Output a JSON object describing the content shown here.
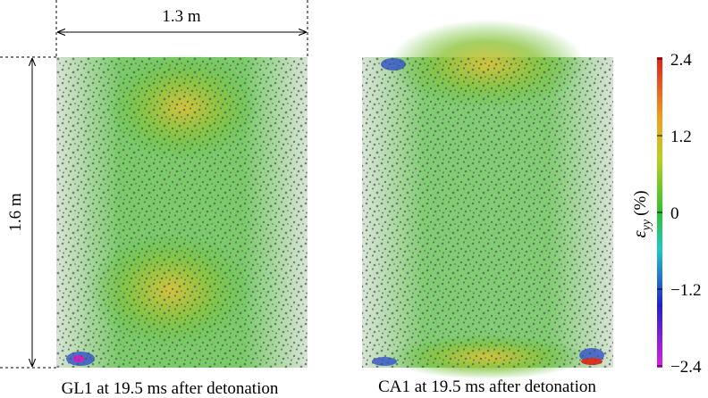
{
  "figure": {
    "dimensions": {
      "width": "1.3 m",
      "height": "1.6 m"
    },
    "panels": [
      {
        "caption": "GL1 at 19.5 ms after detonation"
      },
      {
        "caption": "CA1 at 19.5 ms after detonation"
      }
    ],
    "colorbar": {
      "symbol": "ε",
      "subscript": "yy",
      "unit": "(%)",
      "lim": [
        -2.4,
        2.4
      ],
      "ticks": [
        2.4,
        1.2,
        0,
        {
          "value": -1.2,
          "label": "−1.2"
        },
        {
          "value": -2.4,
          "label": "−2.4"
        }
      ]
    }
  }
}
